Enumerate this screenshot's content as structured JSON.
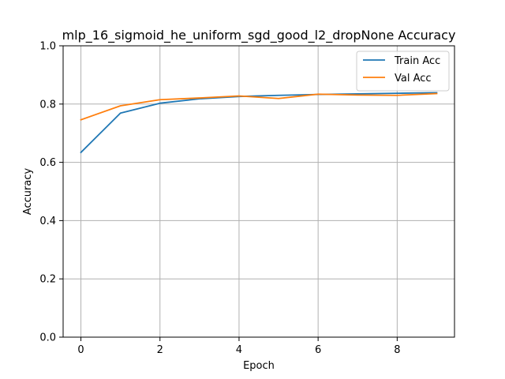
{
  "chart_data": {
    "type": "line",
    "title": "mlp_16_sigmoid_he_uniform_sgd_good_l2_dropNone Accuracy",
    "xlabel": "Epoch",
    "ylabel": "Accuracy",
    "x": [
      0,
      1,
      2,
      3,
      4,
      5,
      6,
      7,
      8,
      9
    ],
    "xlim": [
      -0.45,
      9.45
    ],
    "ylim": [
      0.0,
      1.0
    ],
    "xticks": [
      0,
      2,
      4,
      6,
      8
    ],
    "yticks": [
      0.0,
      0.2,
      0.4,
      0.6,
      0.8,
      1.0
    ],
    "xtick_labels": [
      "0",
      "2",
      "4",
      "6",
      "8"
    ],
    "ytick_labels": [
      "0.0",
      "0.2",
      "0.4",
      "0.6",
      "0.8",
      "1.0"
    ],
    "grid": true,
    "legend_position": "top-right",
    "series": [
      {
        "name": "Train Acc",
        "color": "#1f77b4",
        "values": [
          0.634,
          0.769,
          0.803,
          0.818,
          0.826,
          0.83,
          0.833,
          0.835,
          0.837,
          0.839
        ]
      },
      {
        "name": "Val Acc",
        "color": "#ff7f0e",
        "values": [
          0.746,
          0.794,
          0.815,
          0.821,
          0.828,
          0.819,
          0.834,
          0.831,
          0.83,
          0.836
        ]
      }
    ]
  }
}
